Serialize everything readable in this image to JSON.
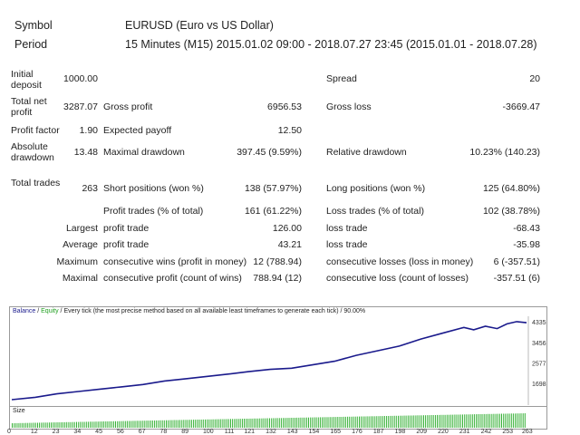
{
  "header": {
    "symbol_label": "Symbol",
    "symbol_value": "EURUSD (Euro vs US Dollar)",
    "period_label": "Period",
    "period_value": "15 Minutes (M15) 2015.01.02 09:00 - 2018.07.27 23:45 (2015.01.01 - 2018.07.28)"
  },
  "stats": {
    "initial_deposit_label": "Initial deposit",
    "initial_deposit_value": "1000.00",
    "spread_label": "Spread",
    "spread_value": "20",
    "total_net_profit_label": "Total net profit",
    "total_net_profit_value": "3287.07",
    "gross_profit_label": "Gross profit",
    "gross_profit_value": "6956.53",
    "gross_loss_label": "Gross loss",
    "gross_loss_value": "-3669.47",
    "profit_factor_label": "Profit factor",
    "profit_factor_value": "1.90",
    "expected_payoff_label": "Expected payoff",
    "expected_payoff_value": "12.50",
    "absolute_drawdown_label": "Absolute drawdown",
    "absolute_drawdown_value": "13.48",
    "maximal_drawdown_label": "Maximal drawdown",
    "maximal_drawdown_value": "397.45 (9.59%)",
    "relative_drawdown_label": "Relative drawdown",
    "relative_drawdown_value": "10.23% (140.23)",
    "total_trades_label": "Total trades",
    "total_trades_value": "263",
    "short_positions_label": "Short positions (won %)",
    "short_positions_value": "138 (57.97%)",
    "long_positions_label": "Long positions (won %)",
    "long_positions_value": "125 (64.80%)",
    "profit_trades_label": "Profit trades (% of total)",
    "profit_trades_value": "161 (61.22%)",
    "loss_trades_label": "Loss trades (% of total)",
    "loss_trades_value": "102 (38.78%)",
    "largest_label": "Largest",
    "largest_profit_label": "profit trade",
    "largest_profit_value": "126.00",
    "largest_loss_label": "loss trade",
    "largest_loss_value": "-68.43",
    "average_label": "Average",
    "average_profit_label": "profit trade",
    "average_profit_value": "43.21",
    "average_loss_label": "loss trade",
    "average_loss_value": "-35.98",
    "maximum_label": "Maximum",
    "max_consec_wins_label": "consecutive wins (profit in money)",
    "max_consec_wins_value": "12 (788.94)",
    "max_consec_losses_label": "consecutive losses (loss in money)",
    "max_consec_losses_value": "6 (-357.51)",
    "maximal_label": "Maximal",
    "maximal_consec_profit_label": "consecutive profit (count of wins)",
    "maximal_consec_profit_value": "788.94 (12)",
    "maximal_consec_loss_label": "consecutive loss (count of losses)",
    "maximal_consec_loss_value": "-357.51 (6)"
  },
  "colors": {
    "balance": "#1a1a8c",
    "equity": "#1e9e1e",
    "size_bars": "#35b035"
  },
  "chart_data": {
    "type": "line",
    "legend": {
      "balance": "Balance",
      "separator": " / ",
      "equity": "Equity",
      "description": " / Every tick (the most precise method based on all available least timeframes to generate each tick) / 90.00%"
    },
    "size_label": "Size",
    "y_ticks": [
      "4335",
      "3456",
      "2577",
      "1698"
    ],
    "x_ticks": [
      "0",
      "12",
      "23",
      "34",
      "45",
      "56",
      "67",
      "78",
      "89",
      "100",
      "111",
      "121",
      "132",
      "143",
      "154",
      "165",
      "176",
      "187",
      "198",
      "209",
      "220",
      "231",
      "242",
      "253",
      "263"
    ],
    "ylim": [
      1000,
      4500
    ],
    "xlim": [
      0,
      263
    ],
    "series": [
      {
        "name": "Balance",
        "x": [
          0,
          12,
          23,
          34,
          45,
          56,
          67,
          78,
          89,
          100,
          111,
          121,
          132,
          143,
          154,
          165,
          176,
          187,
          198,
          209,
          220,
          231,
          236,
          242,
          248,
          253,
          258,
          263
        ],
        "y": [
          1000,
          1100,
          1250,
          1350,
          1450,
          1550,
          1650,
          1800,
          1900,
          2000,
          2100,
          2200,
          2300,
          2350,
          2500,
          2650,
          2900,
          3100,
          3300,
          3600,
          3850,
          4100,
          4000,
          4150,
          4050,
          4250,
          4350,
          4300
        ]
      }
    ]
  }
}
